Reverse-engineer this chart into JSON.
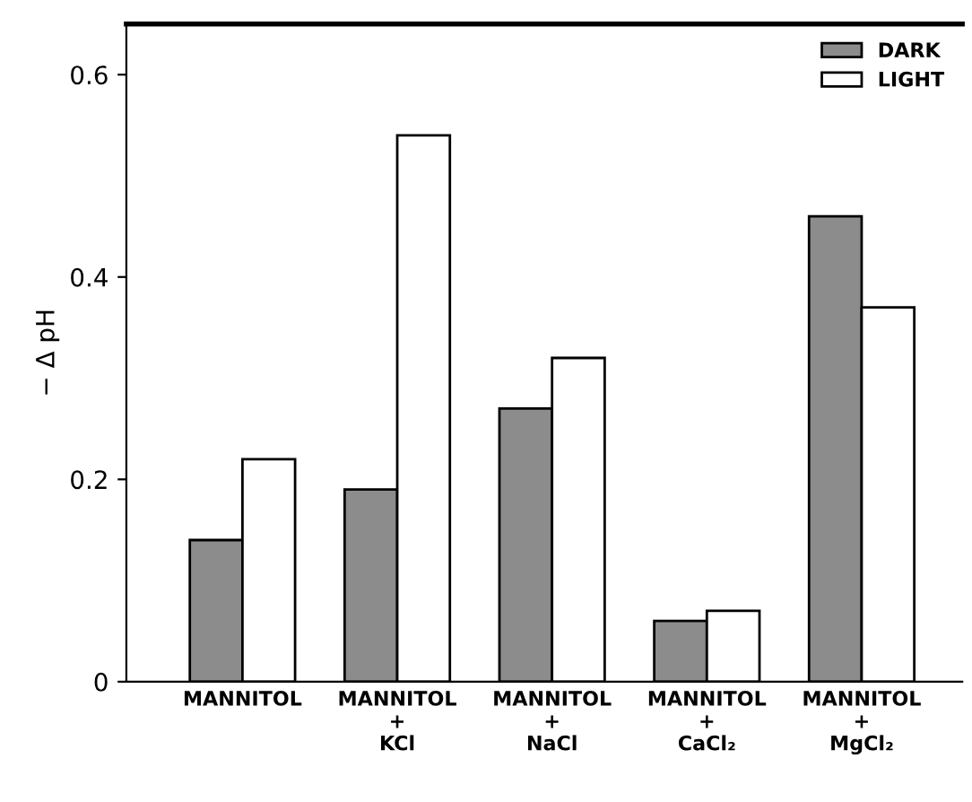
{
  "chart_data": {
    "type": "bar",
    "ylabel": "− Δ pH",
    "categories": [
      "MANNITOL",
      "MANNITOL\n+\nKCl",
      "MANNITOL\n+\nNaCl",
      "MANNITOL\n+\nCaCl₂",
      "MANNITOL\n+\nMgCl₂"
    ],
    "series": [
      {
        "name": "DARK",
        "color": "#8c8c8c",
        "values": [
          0.14,
          0.19,
          0.27,
          0.06,
          0.46
        ]
      },
      {
        "name": "LIGHT",
        "color": "#ffffff",
        "values": [
          0.22,
          0.54,
          0.32,
          0.07,
          0.37
        ]
      }
    ],
    "ylim": [
      0,
      0.65
    ],
    "yticks": [
      0,
      0.2,
      0.4,
      0.6
    ],
    "grid": false,
    "legend": "top right"
  }
}
